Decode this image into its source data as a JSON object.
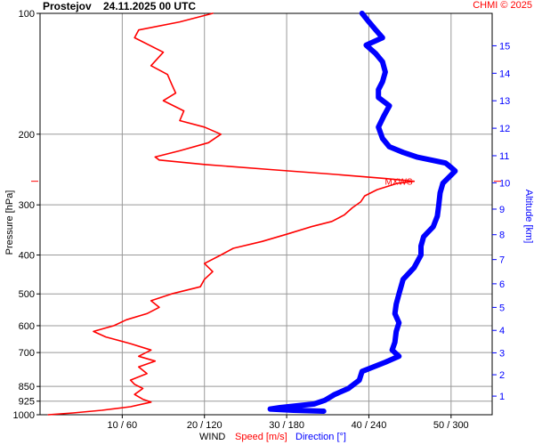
{
  "header": {
    "station": "Prostejov",
    "datetime": "24.11.2025 00 UTC",
    "credit": "CHMI © 2025"
  },
  "chart_data": {
    "type": "line",
    "yaxis_left": {
      "label": "Pressure [hPa]",
      "scale": "log",
      "range": [
        1000,
        100
      ],
      "ticks": [
        100,
        200,
        300,
        400,
        500,
        600,
        700,
        850,
        925,
        1000
      ]
    },
    "yaxis_right": {
      "label": "Altitude [km]",
      "ticks": [
        1,
        2,
        3,
        4,
        5,
        6,
        7,
        8,
        9,
        10,
        11,
        12,
        13,
        14,
        15
      ]
    },
    "xaxis": {
      "title": "WIND",
      "speed_label": "Speed [m/s]",
      "direction_label": "Direction [°]",
      "ticks": [
        "10 / 60",
        "20 / 120",
        "30 / 180",
        "40 / 240",
        "50 / 300"
      ],
      "speed_range": [
        0,
        55
      ],
      "direction_range": [
        0,
        330
      ]
    },
    "annotation": {
      "text": "MXWS",
      "pressure": 262,
      "speed": 40
    },
    "grid": true,
    "series": [
      {
        "name": "Speed [m/s]",
        "color": "#ff0000",
        "points": [
          [
            1000,
            1.0
          ],
          [
            990,
            4.0
          ],
          [
            975,
            7.5
          ],
          [
            955,
            11.0
          ],
          [
            930,
            13.5
          ],
          [
            915,
            12.5
          ],
          [
            890,
            11.5
          ],
          [
            860,
            12.5
          ],
          [
            840,
            11.5
          ],
          [
            820,
            11.0
          ],
          [
            790,
            13.0
          ],
          [
            760,
            12.0
          ],
          [
            735,
            14.0
          ],
          [
            715,
            12.0
          ],
          [
            690,
            13.5
          ],
          [
            665,
            11.0
          ],
          [
            640,
            8.0
          ],
          [
            620,
            6.5
          ],
          [
            600,
            9.0
          ],
          [
            580,
            10.5
          ],
          [
            560,
            13.0
          ],
          [
            540,
            14.5
          ],
          [
            520,
            13.5
          ],
          [
            500,
            16.0
          ],
          [
            480,
            19.5
          ],
          [
            460,
            20.0
          ],
          [
            440,
            21.0
          ],
          [
            420,
            20.0
          ],
          [
            400,
            22.0
          ],
          [
            385,
            23.5
          ],
          [
            370,
            27.0
          ],
          [
            355,
            30.0
          ],
          [
            340,
            33.0
          ],
          [
            330,
            35.5
          ],
          [
            318,
            37.0
          ],
          [
            305,
            38.0
          ],
          [
            295,
            39.0
          ],
          [
            285,
            39.5
          ],
          [
            275,
            41.0
          ],
          [
            265,
            43.5
          ],
          [
            262,
            45.5
          ],
          [
            258,
            42.0
          ],
          [
            252,
            36.0
          ],
          [
            245,
            28.0
          ],
          [
            238,
            20.0
          ],
          [
            232,
            14.5
          ],
          [
            228,
            14.0
          ],
          [
            220,
            17.0
          ],
          [
            210,
            20.5
          ],
          [
            200,
            22.0
          ],
          [
            192,
            20.0
          ],
          [
            185,
            17.0
          ],
          [
            175,
            17.5
          ],
          [
            165,
            15.0
          ],
          [
            158,
            16.5
          ],
          [
            150,
            16.0
          ],
          [
            142,
            15.5
          ],
          [
            135,
            13.5
          ],
          [
            125,
            15.0
          ],
          [
            115,
            11.5
          ],
          [
            110,
            12.0
          ],
          [
            105,
            17.0
          ],
          [
            100,
            21.0
          ]
        ]
      },
      {
        "name": "Direction [°]",
        "color": "#0000ff",
        "points": [
          [
            980,
            207
          ],
          [
            975,
            185
          ],
          [
            968,
            168
          ],
          [
            960,
            175
          ],
          [
            940,
            200
          ],
          [
            920,
            208
          ],
          [
            890,
            215
          ],
          [
            860,
            225
          ],
          [
            820,
            233
          ],
          [
            780,
            235
          ],
          [
            740,
            252
          ],
          [
            715,
            262
          ],
          [
            690,
            257
          ],
          [
            660,
            259
          ],
          [
            620,
            260
          ],
          [
            590,
            262
          ],
          [
            560,
            259
          ],
          [
            530,
            260
          ],
          [
            500,
            262
          ],
          [
            460,
            265
          ],
          [
            430,
            273
          ],
          [
            400,
            278
          ],
          [
            380,
            278
          ],
          [
            360,
            280
          ],
          [
            340,
            287
          ],
          [
            320,
            290
          ],
          [
            300,
            291
          ],
          [
            280,
            292
          ],
          [
            265,
            294
          ],
          [
            255,
            299
          ],
          [
            247,
            303
          ],
          [
            242,
            300
          ],
          [
            236,
            296
          ],
          [
            228,
            275
          ],
          [
            222,
            265
          ],
          [
            215,
            255
          ],
          [
            205,
            250
          ],
          [
            192,
            247
          ],
          [
            180,
            251
          ],
          [
            170,
            255
          ],
          [
            162,
            247
          ],
          [
            155,
            247
          ],
          [
            148,
            250
          ],
          [
            140,
            252
          ],
          [
            132,
            250
          ],
          [
            126,
            245
          ],
          [
            120,
            238
          ],
          [
            115,
            250
          ],
          [
            110,
            245
          ],
          [
            105,
            240
          ],
          [
            100,
            235
          ]
        ]
      }
    ]
  }
}
